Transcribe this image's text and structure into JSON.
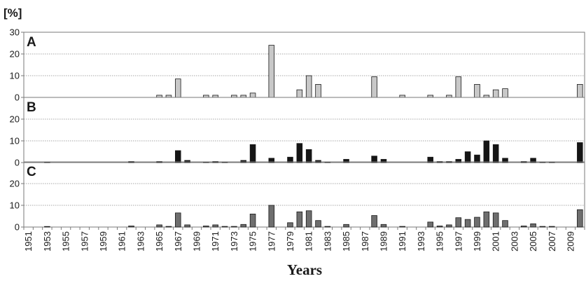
{
  "chart_data": {
    "type": "bar",
    "unit_label": "[%]",
    "xlabel": "Years",
    "ylim": [
      0,
      30
    ],
    "yticks": [
      0,
      10,
      20,
      30
    ],
    "grid": true,
    "x_start": 1951,
    "x_end": 2010,
    "xtick_labels": [
      "1951",
      "1953",
      "1955",
      "1957",
      "1959",
      "1961",
      "1963",
      "1965",
      "1967",
      "1969",
      "1971",
      "1973",
      "1975",
      "1977",
      "1979",
      "1981",
      "1983",
      "1985",
      "1987",
      "1989",
      "1991",
      "1993",
      "1995",
      "1997",
      "1999",
      "2001",
      "2003",
      "2005",
      "2007",
      "2009"
    ],
    "panels": [
      {
        "label": "A",
        "color": "#c8c8c8",
        "values": {
          "1965": 1,
          "1966": 1,
          "1967": 8.5,
          "1970": 1,
          "1971": 1,
          "1973": 1,
          "1974": 1,
          "1975": 2,
          "1977": 24,
          "1980": 3.5,
          "1981": 10,
          "1982": 6,
          "1988": 9.5,
          "1991": 1,
          "1994": 1,
          "1996": 1,
          "1997": 9.5,
          "1999": 6,
          "2000": 1,
          "2001": 3.5,
          "2002": 4,
          "2010": 6
        }
      },
      {
        "label": "B",
        "color": "#151515",
        "values": {
          "1953": 0.2,
          "1962": 0.5,
          "1965": 0.5,
          "1967": 5.5,
          "1968": 1,
          "1970": 0.2,
          "1971": 0.5,
          "1972": 0.2,
          "1974": 1,
          "1975": 8.3,
          "1977": 2,
          "1979": 2.5,
          "1980": 8.8,
          "1981": 6,
          "1982": 1,
          "1983": 0.2,
          "1985": 1.5,
          "1988": 3,
          "1989": 1.5,
          "1994": 2.5,
          "1995": 0.5,
          "1996": 0.5,
          "1997": 1.5,
          "1998": 5,
          "1999": 3.5,
          "2000": 10,
          "2001": 8.3,
          "2002": 2,
          "2004": 0.5,
          "2005": 2,
          "2006": 0.2,
          "2007": 0.2,
          "2010": 9.2
        }
      },
      {
        "label": "C",
        "color": "#6e6e6e",
        "values": {
          "1953": 0.2,
          "1962": 0.5,
          "1965": 1,
          "1966": 0.3,
          "1967": 6.5,
          "1968": 1,
          "1970": 0.5,
          "1971": 1,
          "1972": 0.3,
          "1973": 0.3,
          "1974": 1.2,
          "1975": 6,
          "1977": 10,
          "1979": 2,
          "1980": 7,
          "1981": 7.5,
          "1982": 3,
          "1983": 0.3,
          "1985": 1.2,
          "1988": 5.3,
          "1989": 1.2,
          "1991": 0.3,
          "1994": 2.3,
          "1995": 0.5,
          "1996": 1,
          "1997": 4.3,
          "1998": 3.5,
          "1999": 4.5,
          "2000": 7,
          "2001": 6.5,
          "2002": 3,
          "2004": 0.5,
          "2005": 1.5,
          "2006": 0.3,
          "2007": 0.3,
          "2010": 8
        }
      }
    ]
  }
}
